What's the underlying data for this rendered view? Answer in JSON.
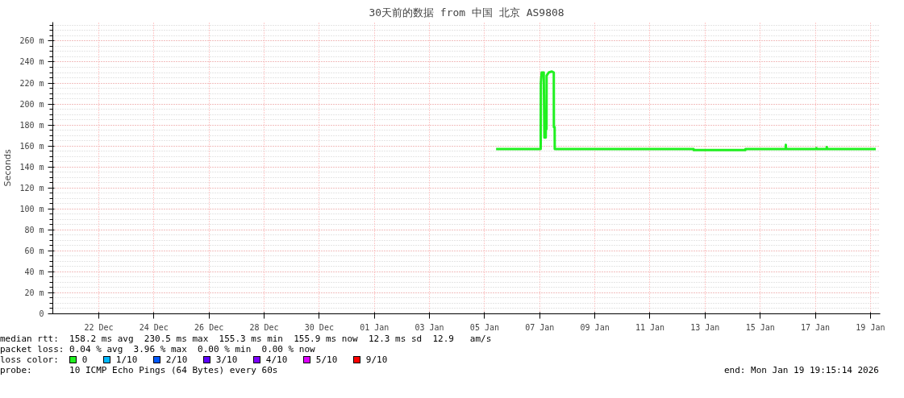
{
  "chart_data": {
    "type": "line",
    "title": "30天前的数据 from 中国 北京 AS9808",
    "ylabel": "Seconds",
    "legend_title": "loss color:",
    "legend": "bottom left",
    "grid": true,
    "xlim": [
      "2025-12-20T08:00",
      "2026-01-19T08:30"
    ],
    "xticks": [
      {
        "value": "2025-12-22",
        "label": "22 Dec"
      },
      {
        "value": "2025-12-24",
        "label": "24 Dec"
      },
      {
        "value": "2025-12-26",
        "label": "26 Dec"
      },
      {
        "value": "2025-12-28",
        "label": "28 Dec"
      },
      {
        "value": "2025-12-30",
        "label": "30 Dec"
      },
      {
        "value": "2026-01-01",
        "label": "01 Jan"
      },
      {
        "value": "2026-01-03",
        "label": "03 Jan"
      },
      {
        "value": "2026-01-05",
        "label": "05 Jan"
      },
      {
        "value": "2026-01-07",
        "label": "07 Jan"
      },
      {
        "value": "2026-01-09",
        "label": "09 Jan"
      },
      {
        "value": "2026-01-11",
        "label": "11 Jan"
      },
      {
        "value": "2026-01-13",
        "label": "13 Jan"
      },
      {
        "value": "2026-01-15",
        "label": "15 Jan"
      },
      {
        "value": "2026-01-17",
        "label": "17 Jan"
      },
      {
        "value": "2026-01-19",
        "label": "19 Jan"
      }
    ],
    "ylim": [
      0,
      278
    ],
    "yticks": [
      0,
      {
        "value": 20,
        "label": "20 m"
      },
      {
        "value": 40,
        "label": "40 m"
      },
      {
        "value": 60,
        "label": "60 m"
      },
      {
        "value": 80,
        "label": "80 m"
      },
      {
        "value": 100,
        "label": "100 m"
      },
      {
        "value": 120,
        "label": "120 m"
      },
      {
        "value": 140,
        "label": "140 m"
      },
      {
        "value": 160,
        "label": "160 m"
      },
      {
        "value": 180,
        "label": "180 m"
      },
      {
        "value": 200,
        "label": "200 m"
      },
      {
        "value": 220,
        "label": "220 m"
      },
      {
        "value": 240,
        "label": "240 m"
      },
      {
        "value": 260,
        "label": "260 m"
      }
    ],
    "x": [
      "2026-01-05T10:00",
      "2026-01-07T00:50",
      "2026-01-07T01:00",
      "2026-01-07T01:40",
      "2026-01-07T03:30",
      "2026-01-07T04:05",
      "2026-01-07T05:15",
      "2026-01-07T05:20",
      "2026-01-07T05:55",
      "2026-01-07T06:00",
      "2026-01-07T07:50",
      "2026-01-07T10:35",
      "2026-01-07T12:15",
      "2026-01-07T12:20",
      "2026-01-07T13:00",
      "2026-01-07T13:05",
      "2026-01-12T14:00",
      "2026-01-12T14:10",
      "2026-01-14T11:00",
      "2026-01-14T11:10",
      "2026-01-15T22:10",
      "2026-01-15T22:20",
      "2026-01-15T22:30",
      "2026-01-17T00:50",
      "2026-01-17T01:00",
      "2026-01-17T01:10",
      "2026-01-17T09:50",
      "2026-01-17T10:00",
      "2026-01-17T10:10",
      "2026-01-19T04:40"
    ],
    "series": [
      {
        "name": "0",
        "color": "#20f020",
        "values": [
          157,
          157,
          220,
          230,
          230,
          168,
          168,
          176,
          176,
          227,
          230,
          231,
          230,
          178,
          178,
          157,
          157,
          156,
          156,
          157,
          157,
          161,
          157,
          157,
          158,
          157,
          157,
          159,
          157,
          157
        ]
      },
      {
        "name": "1/10",
        "color": "#00b8ff",
        "values": [
          null,
          null,
          null,
          null,
          null,
          null,
          null,
          null,
          null,
          null,
          null,
          null,
          null,
          null,
          null,
          null,
          null,
          null,
          null,
          null,
          null,
          null,
          null,
          null,
          null,
          null,
          null,
          null,
          null,
          null
        ]
      },
      {
        "name": "2/10",
        "color": "#0059ff",
        "values": [
          null,
          null,
          null,
          null,
          null,
          null,
          null,
          null,
          null,
          null,
          null,
          null,
          null,
          null,
          null,
          null,
          null,
          null,
          null,
          null,
          null,
          null,
          null,
          null,
          null,
          null,
          null,
          null,
          null,
          null
        ]
      },
      {
        "name": "3/10",
        "color": "#5e00ff",
        "values": [
          null,
          null,
          null,
          null,
          null,
          null,
          null,
          null,
          null,
          null,
          null,
          null,
          null,
          null,
          null,
          null,
          null,
          null,
          null,
          null,
          null,
          null,
          null,
          null,
          null,
          null,
          null,
          null,
          null,
          null
        ]
      },
      {
        "name": "4/10",
        "color": "#7e00ff",
        "values": [
          null,
          null,
          null,
          null,
          null,
          null,
          null,
          null,
          null,
          null,
          null,
          null,
          null,
          null,
          null,
          null,
          null,
          null,
          null,
          null,
          null,
          null,
          null,
          null,
          null,
          null,
          null,
          null,
          null,
          null
        ]
      },
      {
        "name": "5/10",
        "color": "#dd00ff",
        "values": [
          null,
          null,
          null,
          null,
          null,
          null,
          null,
          null,
          null,
          null,
          null,
          null,
          null,
          null,
          null,
          null,
          null,
          null,
          null,
          null,
          null,
          null,
          null,
          null,
          null,
          null,
          null,
          null,
          null,
          null
        ]
      },
      {
        "name": "9/10",
        "color": "#ff0000",
        "values": [
          null,
          null,
          null,
          null,
          null,
          null,
          null,
          null,
          null,
          null,
          null,
          null,
          null,
          null,
          null,
          null,
          null,
          null,
          null,
          null,
          null,
          null,
          null,
          null,
          null,
          null,
          null,
          null,
          null,
          null
        ]
      }
    ],
    "annotations": [
      "median rtt:  158.2 ms avg  230.5 ms max  155.3 ms min  155.9 ms now  12.3 ms sd  12.9   am/s",
      "packet loss: 0.04 % avg  3.96 % max  0.00 % min  0.00 % now",
      "probe:       10 ICMP Echo Pings (64 Bytes) every 60s",
      "end: Mon Jan 19 19:15:14 2026"
    ]
  }
}
